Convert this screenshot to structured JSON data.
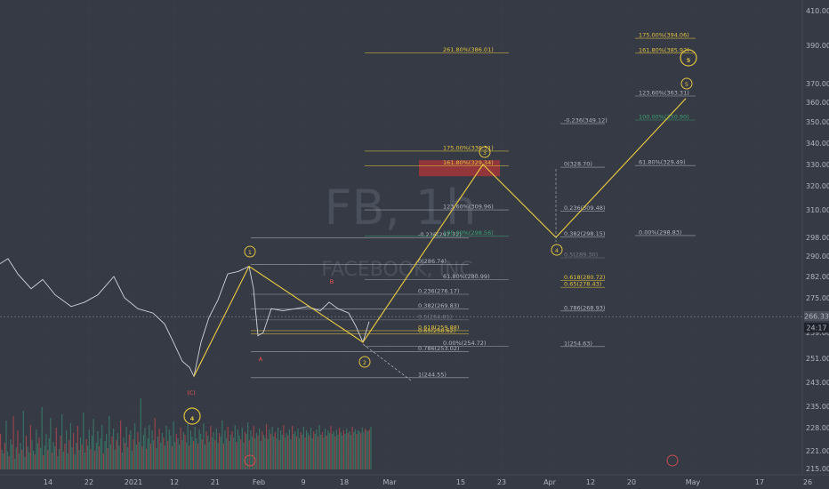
{
  "chart_data": {
    "type": "line",
    "symbol": "FB, 1h",
    "company": "FACEBOOK, INC.",
    "x_ticks": [
      "14",
      "22",
      "2021",
      "12",
      "21",
      "Feb",
      "9",
      "18",
      "Mar",
      "15",
      "23",
      "Apr",
      "12",
      "20",
      "May",
      "17",
      "26"
    ],
    "y_ticks": [
      "410.00",
      "390.00",
      "370.00",
      "360.00",
      "350.00",
      "340.00",
      "330.00",
      "320.00",
      "310.00",
      "298.00",
      "290.00",
      "282.00",
      "275.00",
      "259.00",
      "251.00",
      "243.00",
      "235.00",
      "228.00",
      "221.00",
      "215.00"
    ],
    "price_label": "266.33",
    "time_label": "24:17",
    "ylim": [
      213,
      418
    ],
    "series": [
      {
        "name": "",
        "values": [
          [
            0,
            287
          ],
          [
            9,
            289
          ],
          [
            20,
            283
          ],
          [
            35,
            278
          ],
          [
            48,
            281
          ],
          [
            62,
            276
          ],
          [
            80,
            271
          ],
          [
            95,
            273
          ],
          [
            110,
            276
          ],
          [
            128,
            282
          ],
          [
            140,
            275
          ],
          [
            155,
            270
          ],
          [
            172,
            268
          ],
          [
            185,
            263
          ],
          [
            195,
            256
          ],
          [
            205,
            250
          ],
          [
            213,
            248
          ],
          [
            218,
            245
          ],
          [
            226,
            256
          ],
          [
            235,
            266
          ],
          [
            245,
            274
          ],
          [
            256,
            283
          ],
          [
            268,
            284
          ],
          [
            280,
            286
          ],
          [
            285,
            278
          ],
          [
            290,
            258
          ],
          [
            296,
            259
          ],
          [
            305,
            270
          ],
          [
            318,
            269
          ],
          [
            332,
            270
          ],
          [
            346,
            271
          ],
          [
            360,
            269
          ],
          [
            370,
            273
          ],
          [
            380,
            270
          ],
          [
            392,
            268
          ],
          [
            400,
            262
          ],
          [
            408,
            256
          ],
          [
            415,
            264
          ]
        ]
      }
    ],
    "waves": [
      {
        "label": "(C)",
        "points": []
      },
      {
        "label": "4",
        "points": []
      },
      {
        "label": "1",
        "points": []
      },
      {
        "label": "A",
        "points": []
      },
      {
        "label": "B",
        "points": []
      },
      {
        "label": "2",
        "points": []
      },
      {
        "label": "3",
        "points": []
      },
      {
        "label": "4",
        "points": []
      },
      {
        "label": "5",
        "points": []
      },
      {
        "label": "5",
        "points": []
      }
    ],
    "projection": [
      [
        218,
        245
      ],
      [
        280,
        286
      ],
      [
        408,
        256
      ],
      [
        543,
        330
      ],
      [
        625,
        298
      ],
      [
        771,
        362
      ]
    ],
    "fib_sets": [
      {
        "x1": 282,
        "x2": 527,
        "levels": [
          {
            "label": "-0.236(297.72)",
            "y": 297.72,
            "color": "#b2b5be"
          },
          {
            "label": "0(286.74)",
            "y": 286.74,
            "color": "#b2b5be"
          },
          {
            "label": "0.236(276.17)",
            "y": 276.17,
            "color": "#b2b5be"
          },
          {
            "label": "0.382(269.83)",
            "y": 269.83,
            "color": "#b2b5be"
          },
          {
            "label": "0.5(264.81)",
            "y": 264.81,
            "color": "#787b86"
          },
          {
            "label": "0.618(259.88)",
            "y": 259.88,
            "color": "#e0c341"
          },
          {
            "label": "0.65(258.62)",
            "y": 258.62,
            "color": "#e0c341"
          },
          {
            "label": "0.786(253.02)",
            "y": 253.02,
            "color": "#b2b5be"
          },
          {
            "label": "1(244.55)",
            "y": 244.55,
            "color": "#b2b5be"
          }
        ]
      },
      {
        "x1": 410,
        "x2": 572,
        "levels": [
          {
            "label": "261.80%(386.01)",
            "y": 386.01,
            "color": "#e0c341"
          },
          {
            "label": "175.00%(336.31)",
            "y": 336.31,
            "color": "#e0c341"
          },
          {
            "label": "161.80%(329.34)",
            "y": 329.34,
            "color": "#e0c341"
          },
          {
            "label": "123.60%(309.96)",
            "y": 309.96,
            "color": "#b2b5be"
          },
          {
            "label": "100.00%(298.56)",
            "y": 298.56,
            "color": "#3ba171"
          },
          {
            "label": "61.80%(280.99)",
            "y": 280.99,
            "color": "#b2b5be"
          },
          {
            "label": "0.00%(254.72)",
            "y": 254.72,
            "color": "#b2b5be"
          }
        ]
      },
      {
        "x1": 630,
        "x2": 680,
        "levels": [
          {
            "label": "-0.236(349.12)",
            "y": 349.12,
            "color": "#b2b5be"
          },
          {
            "label": "0(328.70)",
            "y": 328.7,
            "color": "#b2b5be"
          },
          {
            "label": "0.236(309.48)",
            "y": 309.48,
            "color": "#b2b5be"
          },
          {
            "label": "0.382(298.15)",
            "y": 298.15,
            "color": "#b2b5be"
          },
          {
            "label": "0.5(289.30)",
            "y": 289.3,
            "color": "#787b86"
          },
          {
            "label": "0.618(280.72)",
            "y": 280.72,
            "color": "#e0c341"
          },
          {
            "label": "0.65(278.43)",
            "y": 278.43,
            "color": "#e0c341"
          },
          {
            "label": "0.786(268.93)",
            "y": 268.93,
            "color": "#b2b5be"
          },
          {
            "label": "1(254.63)",
            "y": 254.63,
            "color": "#b2b5be"
          }
        ]
      },
      {
        "x1": 714,
        "x2": 782,
        "levels": [
          {
            "label": "175.00%(394.06)",
            "y": 394.06,
            "color": "#e0c341"
          },
          {
            "label": "161.80%(385.92)",
            "y": 385.92,
            "color": "#e0c341"
          },
          {
            "label": "123.60%(363.31)",
            "y": 363.31,
            "color": "#b2b5be"
          },
          {
            "label": "100.00%(350.90)",
            "y": 350.9,
            "color": "#3ba171"
          },
          {
            "label": "61.80%(329.49)",
            "y": 329.49,
            "color": "#b2b5be"
          },
          {
            "label": "0.00%(298.83)",
            "y": 298.83,
            "color": "#b2b5be"
          }
        ]
      }
    ],
    "target_zone": {
      "y1": 324.5,
      "y2": 332.0
    },
    "colors": {
      "background": "#363a45",
      "price": "#d1d4dc",
      "wave": "#e0c341",
      "corrective": "#ef5350",
      "zone": "#b2363a",
      "grid": "#3f4350"
    },
    "volume": [
      40,
      22,
      18,
      30,
      55,
      20,
      15,
      34,
      28,
      60,
      12,
      25,
      44,
      18,
      30,
      22,
      66,
      14,
      38,
      26,
      19,
      50,
      33,
      21,
      17,
      45,
      29,
      36,
      24,
      70,
      16,
      27,
      40,
      22,
      35,
      58,
      19,
      31,
      26,
      47,
      15,
      23,
      38,
      62,
      20,
      29,
      44,
      18,
      33,
      52,
      25,
      41,
      17,
      30,
      49,
      22,
      36,
      28,
      64,
      19,
      34,
      27,
      45,
      23,
      38,
      57,
      21,
      30,
      43,
      26,
      35,
      50,
      18,
      32,
      40,
      24,
      60,
      28,
      37,
      46,
      22,
      33,
      41,
      27,
      55,
      19,
      36,
      30,
      48,
      25,
      39,
      44,
      21,
      34,
      52,
      28,
      42,
      31,
      80,
      26,
      39,
      47,
      23,
      35,
      50,
      29,
      44,
      33,
      58,
      24,
      37,
      46,
      30,
      41,
      36,
      27,
      49,
      32,
      45,
      38,
      26,
      54,
      31,
      40,
      35,
      28,
      47,
      33,
      42,
      39,
      30,
      51,
      27,
      44,
      37,
      32,
      48,
      35,
      29,
      45,
      40,
      34,
      52,
      28,
      43,
      38,
      31,
      49,
      36,
      42,
      33,
      46,
      30,
      41,
      37,
      55,
      29,
      44,
      35,
      48,
      32,
      39,
      43,
      36,
      50,
      31,
      45,
      38,
      34,
      47,
      30,
      42,
      40,
      53,
      33,
      44,
      37,
      49,
      35,
      41,
      38,
      46,
      32,
      43,
      39,
      36,
      51,
      34,
      45,
      40,
      48,
      37,
      42,
      35,
      47,
      33,
      44,
      39,
      50,
      36,
      41,
      38,
      45,
      34,
      49,
      40,
      43,
      37,
      46,
      35,
      42,
      39,
      48,
      36,
      44,
      41,
      38,
      47,
      35,
      43,
      40,
      45,
      37,
      50,
      39,
      42,
      36,
      46,
      38,
      44,
      41,
      49,
      40,
      43,
      37,
      45,
      39,
      47,
      42,
      38,
      44,
      40,
      46,
      41,
      43,
      39,
      48,
      42,
      45,
      40,
      44,
      43,
      41,
      47,
      42,
      46,
      44,
      43,
      45,
      48
    ]
  }
}
